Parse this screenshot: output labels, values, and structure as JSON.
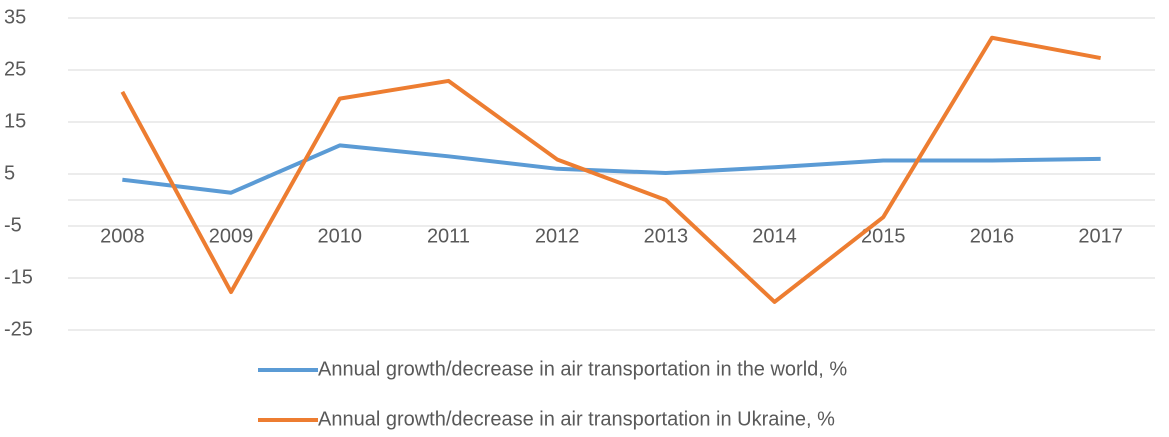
{
  "chart_data": {
    "type": "line",
    "categories": [
      "2008",
      "2009",
      "2010",
      "2011",
      "2012",
      "2013",
      "2014",
      "2015",
      "2016",
      "2017"
    ],
    "series": [
      {
        "name": "Annual growth/decrease in air transportation in the world, %",
        "color": "#5b9bd5",
        "values": [
          3.9,
          1.4,
          10.5,
          8.4,
          6.0,
          5.2,
          6.3,
          7.6,
          7.6,
          7.9
        ]
      },
      {
        "name": "Annual growth/decrease in air transportation in Ukraine, %",
        "color": "#ed7d31",
        "values": [
          20.8,
          -17.7,
          19.5,
          22.9,
          7.8,
          0,
          -19.6,
          -3.3,
          31.2,
          27.3
        ]
      }
    ],
    "ylim": [
      -25,
      35
    ],
    "yticks": [
      -25,
      -15,
      -5,
      5,
      15,
      25,
      35
    ],
    "grid": true,
    "legend": "bottom"
  }
}
